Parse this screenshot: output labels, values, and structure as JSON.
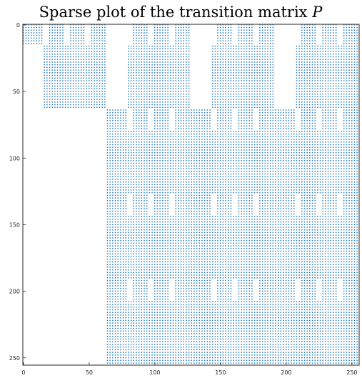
{
  "chart_data": {
    "type": "heatmap",
    "subtype": "sparsity-pattern",
    "title": "Sparse plot of the transition matrix ",
    "title_variable": "P",
    "matrix_size": 256,
    "xlim": [
      0,
      256
    ],
    "ylim": [
      256,
      0
    ],
    "x_ticks": [
      "0",
      "50",
      "100",
      "150",
      "200",
      "250"
    ],
    "y_ticks": [
      "0",
      "50",
      "100",
      "150",
      "200",
      "250"
    ],
    "y_axis_inverted": true,
    "grid": false,
    "marker": ".",
    "marker_color": "#2a7dbe",
    "column_blocks_with_entries": [
      [
        0,
        4
      ],
      [
        4,
        8
      ],
      [
        8,
        12
      ],
      [
        12,
        16
      ],
      [
        16,
        20
      ],
      [
        20,
        24
      ],
      [
        24,
        28
      ],
      [
        28,
        32
      ],
      [
        32,
        36
      ],
      [
        36,
        40
      ],
      [
        40,
        44
      ],
      [
        44,
        48
      ],
      [
        48,
        52
      ],
      [
        52,
        56
      ],
      [
        56,
        60
      ],
      [
        60,
        64
      ],
      [
        64,
        68
      ],
      [
        68,
        72
      ],
      [
        72,
        76
      ],
      [
        76,
        80
      ],
      [
        80,
        84
      ],
      [
        84,
        88
      ],
      [
        88,
        92
      ],
      [
        92,
        96
      ],
      [
        96,
        100
      ],
      [
        100,
        104
      ],
      [
        104,
        108
      ],
      [
        108,
        112
      ],
      [
        112,
        116
      ],
      [
        116,
        120
      ],
      [
        120,
        124
      ],
      [
        124,
        128
      ],
      [
        128,
        132
      ],
      [
        132,
        136
      ],
      [
        136,
        140
      ],
      [
        140,
        144
      ],
      [
        144,
        148
      ],
      [
        148,
        152
      ],
      [
        152,
        156
      ],
      [
        156,
        160
      ],
      [
        160,
        164
      ],
      [
        164,
        168
      ],
      [
        168,
        172
      ],
      [
        172,
        176
      ],
      [
        176,
        180
      ],
      [
        180,
        184
      ],
      [
        184,
        188
      ],
      [
        188,
        192
      ],
      [
        192,
        196
      ],
      [
        196,
        200
      ],
      [
        200,
        204
      ],
      [
        204,
        208
      ],
      [
        208,
        212
      ],
      [
        212,
        216
      ],
      [
        216,
        220
      ],
      [
        220,
        224
      ],
      [
        224,
        228
      ],
      [
        228,
        232
      ],
      [
        232,
        236
      ],
      [
        236,
        240
      ],
      [
        240,
        244
      ],
      [
        244,
        248
      ],
      [
        248,
        252
      ],
      [
        252,
        256
      ]
    ]
  }
}
